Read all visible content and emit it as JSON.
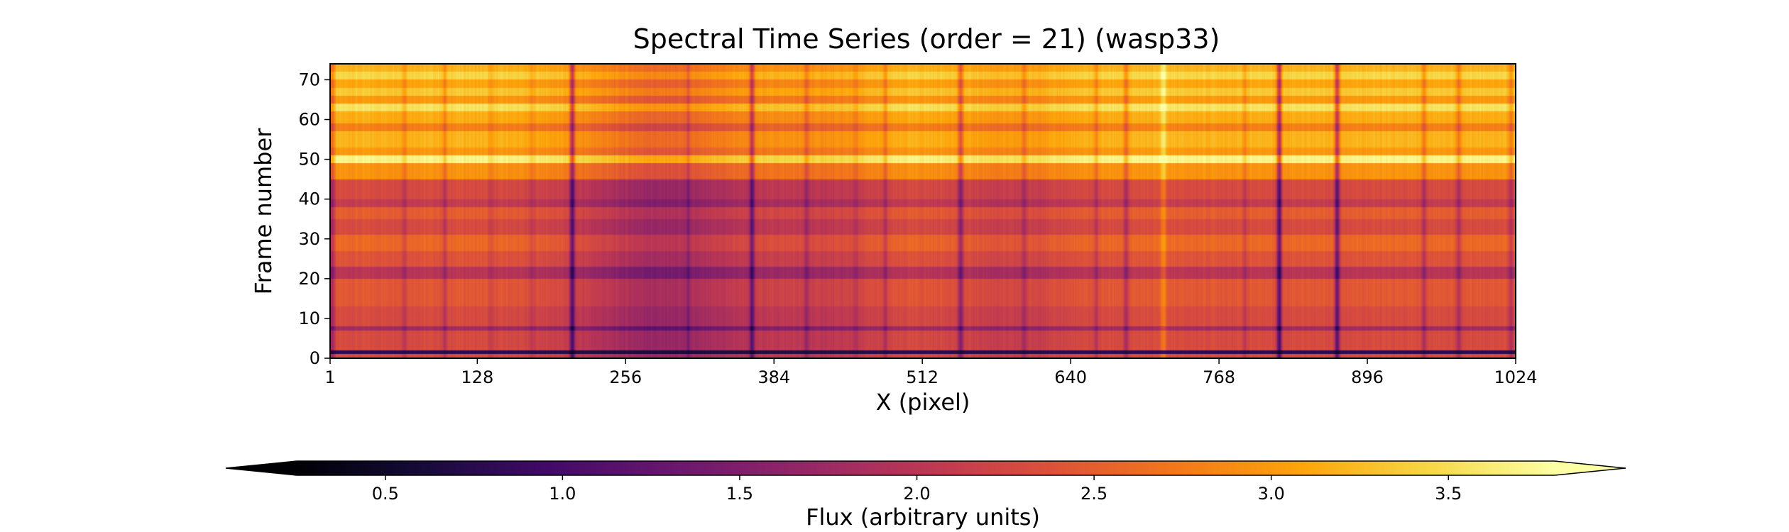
{
  "chart_data": {
    "type": "heatmap",
    "title": "Spectral Time Series (order = 21) (wasp33)",
    "xlabel": "X (pixel)",
    "ylabel": "Frame number",
    "xlim": [
      1,
      1024
    ],
    "ylim": [
      0,
      74
    ],
    "xticks": [
      1,
      128,
      256,
      384,
      512,
      640,
      768,
      896,
      1024
    ],
    "xtick_labels": [
      "1",
      "128",
      "256",
      "384",
      "512",
      "640",
      "768",
      "896",
      "1024"
    ],
    "yticks": [
      0,
      10,
      20,
      30,
      40,
      50,
      60,
      70
    ],
    "ytick_labels": [
      "0",
      "10",
      "20",
      "30",
      "40",
      "50",
      "60",
      "70"
    ],
    "colormap": "inferno",
    "colorbar": {
      "label": "Flux (arbitrary units)",
      "orientation": "horizontal",
      "placement": "bottom",
      "range": [
        0.25,
        3.8
      ],
      "extend": "both",
      "ticks": [
        0.5,
        1.0,
        1.5,
        2.0,
        2.5,
        3.0,
        3.5
      ],
      "tick_labels": [
        "0.5",
        "1.0",
        "1.5",
        "2.0",
        "2.5",
        "3.0",
        "3.5"
      ]
    },
    "column_absorption_lines": [
      {
        "x": 3,
        "depth": 0.6
      },
      {
        "x": 65,
        "depth": 0.25
      },
      {
        "x": 100,
        "depth": 0.35
      },
      {
        "x": 140,
        "depth": 0.22
      },
      {
        "x": 175,
        "depth": 0.2
      },
      {
        "x": 210,
        "depth": 1.05
      },
      {
        "x": 310,
        "depth": 0.25
      },
      {
        "x": 365,
        "depth": 0.9
      },
      {
        "x": 412,
        "depth": 0.35
      },
      {
        "x": 455,
        "depth": 0.2
      },
      {
        "x": 480,
        "depth": 0.35
      },
      {
        "x": 545,
        "depth": 0.75
      },
      {
        "x": 600,
        "depth": 0.3
      },
      {
        "x": 662,
        "depth": 0.3
      },
      {
        "x": 688,
        "depth": 0.5
      },
      {
        "x": 790,
        "depth": 0.25
      },
      {
        "x": 820,
        "depth": 1.25
      },
      {
        "x": 870,
        "depth": 1.1
      },
      {
        "x": 945,
        "depth": 0.45
      },
      {
        "x": 975,
        "depth": 0.5
      },
      {
        "x": 1020,
        "depth": 0.4
      }
    ],
    "column_emission_features": [
      {
        "x": 720,
        "height": 0.45
      }
    ],
    "broad_depressions": [
      {
        "x": 290,
        "width": 80,
        "depth": 0.6
      },
      {
        "x": 430,
        "width": 50,
        "depth": 0.25
      },
      {
        "x": 590,
        "width": 50,
        "depth": 0.2
      }
    ],
    "frame_flux_levels": [
      {
        "frame_start": 0,
        "frame_end": 1,
        "flux": 2.3
      },
      {
        "frame_start": 1,
        "frame_end": 2,
        "flux": 0.8
      },
      {
        "frame_start": 2,
        "frame_end": 7,
        "flux": 2.3
      },
      {
        "frame_start": 7,
        "frame_end": 8,
        "flux": 1.8
      },
      {
        "frame_start": 8,
        "frame_end": 13,
        "flux": 2.3
      },
      {
        "frame_start": 13,
        "frame_end": 20,
        "flux": 2.45
      },
      {
        "frame_start": 20,
        "frame_end": 23,
        "flux": 2.0
      },
      {
        "frame_start": 23,
        "frame_end": 27,
        "flux": 2.4
      },
      {
        "frame_start": 27,
        "frame_end": 31,
        "flux": 2.6
      },
      {
        "frame_start": 31,
        "frame_end": 35,
        "flux": 2.3
      },
      {
        "frame_start": 35,
        "frame_end": 38,
        "flux": 2.5
      },
      {
        "frame_start": 38,
        "frame_end": 40,
        "flux": 2.1
      },
      {
        "frame_start": 40,
        "frame_end": 45,
        "flux": 2.3
      },
      {
        "frame_start": 45,
        "frame_end": 49,
        "flux": 2.95
      },
      {
        "frame_start": 49,
        "frame_end": 51,
        "flux": 3.7
      },
      {
        "frame_start": 51,
        "frame_end": 53,
        "flux": 3.0
      },
      {
        "frame_start": 53,
        "frame_end": 57,
        "flux": 3.2
      },
      {
        "frame_start": 57,
        "frame_end": 59,
        "flux": 2.8
      },
      {
        "frame_start": 59,
        "frame_end": 62,
        "flux": 3.15
      },
      {
        "frame_start": 62,
        "frame_end": 64,
        "flux": 3.55
      },
      {
        "frame_start": 64,
        "frame_end": 66,
        "flux": 3.0
      },
      {
        "frame_start": 66,
        "frame_end": 68,
        "flux": 3.35
      },
      {
        "frame_start": 68,
        "frame_end": 70,
        "flux": 3.1
      },
      {
        "frame_start": 70,
        "frame_end": 72,
        "flux": 3.45
      },
      {
        "frame_start": 72,
        "frame_end": 74,
        "flux": 3.2
      }
    ]
  }
}
